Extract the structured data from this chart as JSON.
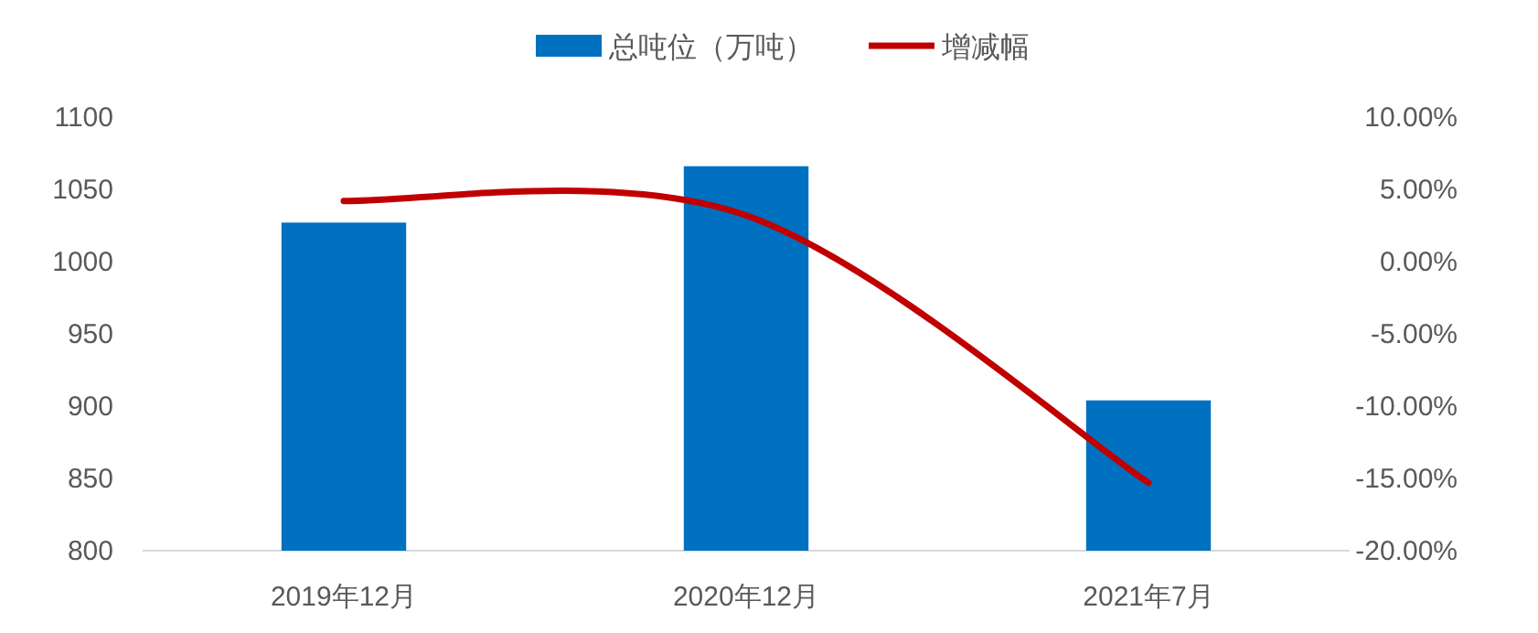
{
  "chart_data": {
    "type": "bar",
    "categories": [
      "2019年12月",
      "2020年12月",
      "2021年7月"
    ],
    "series": [
      {
        "name": "总吨位（万吨）",
        "color": "#0070c0",
        "values": [
          1027,
          1066,
          904
        ]
      },
      {
        "name": "增减幅",
        "type": "line",
        "axis": "y2",
        "color": "#c00000",
        "values": [
          4.2,
          3.2,
          -15.3
        ]
      }
    ],
    "ylim": [
      800,
      1100
    ],
    "yticks": [
      800,
      850,
      900,
      950,
      1000,
      1050,
      1100
    ],
    "y2lim": [
      -20,
      10
    ],
    "y2ticks": [
      {
        "value": -20,
        "label": "-20.00%"
      },
      {
        "value": -15,
        "label": "-15.00%"
      },
      {
        "value": -10,
        "label": "-10.00%"
      },
      {
        "value": -5,
        "label": "-5.00%"
      },
      {
        "value": 0,
        "label": "0.00%"
      },
      {
        "value": 5,
        "label": "5.00%"
      },
      {
        "value": 10,
        "label": "10.00%"
      }
    ],
    "legend": "top"
  }
}
